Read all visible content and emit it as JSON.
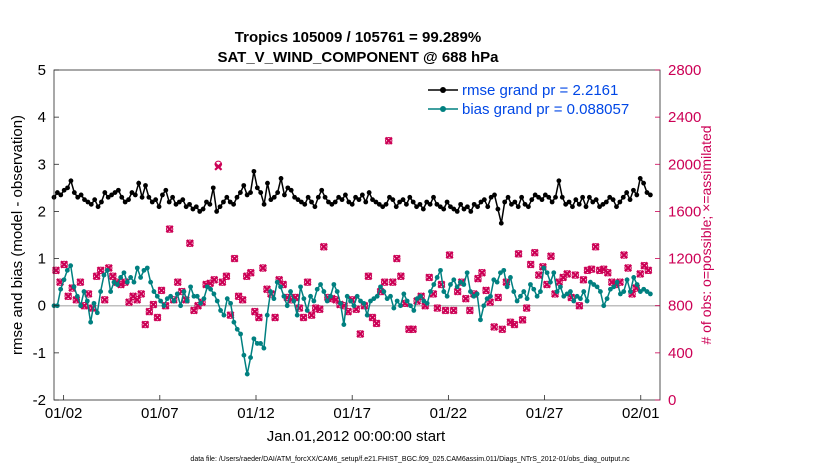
{
  "chart_data": {
    "type": "line",
    "title": "Tropics 105009 / 105761 = 99.289%",
    "subtitle": "SAT_V_WIND_COMPONENT @ 688 hPa",
    "xlabel": "Jan.01,2012 00:00:00 start",
    "ylabel": "rmse and bias (model - observation)",
    "ylabel_right": "# of obs: o=possible; ×=assimilated",
    "footnote": "data file: /Users/raeder/DAI/ATM_forcXX/CAM6_setup/f.e21.FHIST_BGC.f09_025.CAM6assim.011/Diags_NTrS_2012-01/obs_diag_output.nc",
    "xlim": [
      0,
      31.5
    ],
    "ylim": [
      -2,
      5
    ],
    "ylim_right": [
      0,
      2800
    ],
    "x_ticks": [
      0.5,
      5.5,
      10.5,
      15.5,
      20.5,
      25.5,
      30.5
    ],
    "x_tick_labels": [
      "01/02",
      "01/07",
      "01/12",
      "01/17",
      "01/22",
      "01/27",
      "02/01"
    ],
    "y_ticks": [
      -2,
      -1,
      0,
      1,
      2,
      3,
      4,
      5
    ],
    "y_ticks_right": [
      0,
      400,
      800,
      1200,
      1600,
      2000,
      2400,
      2800
    ],
    "legend": [
      {
        "label": "rmse grand pr = 2.2161",
        "color": "#000000"
      },
      {
        "label": "bias grand pr = 0.088057",
        "color": "#008080"
      }
    ],
    "series": [
      {
        "name": "rmse",
        "axis": "left",
        "color": "#000000",
        "marker": "circle",
        "values": [
          2.3,
          2.4,
          2.35,
          2.45,
          2.5,
          2.65,
          2.4,
          2.3,
          2.35,
          2.25,
          2.2,
          2.15,
          2.25,
          2.1,
          2.2,
          2.4,
          2.3,
          2.35,
          2.4,
          2.45,
          2.3,
          2.2,
          2.25,
          2.4,
          2.35,
          2.6,
          2.3,
          2.55,
          2.3,
          2.2,
          2.25,
          2.1,
          2.35,
          2.45,
          2.2,
          2.3,
          2.15,
          2.2,
          2.25,
          2.1,
          2.15,
          2.05,
          2.1,
          2.0,
          2.05,
          2.2,
          2.15,
          2.5,
          2.0,
          2.1,
          2.2,
          2.3,
          2.2,
          2.15,
          2.3,
          2.4,
          2.55,
          2.35,
          2.4,
          2.85,
          2.5,
          2.4,
          2.15,
          2.6,
          2.25,
          2.3,
          2.4,
          2.7,
          2.35,
          2.5,
          2.45,
          2.3,
          2.25,
          2.2,
          2.15,
          2.3,
          2.2,
          2.1,
          2.3,
          2.45,
          2.3,
          2.2,
          2.15,
          2.2,
          2.3,
          2.25,
          2.35,
          2.2,
          2.15,
          2.3,
          2.25,
          2.35,
          2.2,
          2.4,
          2.25,
          2.2,
          2.15,
          2.1,
          2.15,
          2.3,
          2.25,
          2.1,
          2.2,
          2.25,
          2.15,
          2.3,
          2.2,
          2.1,
          2.15,
          2.05,
          2.2,
          2.15,
          2.3,
          2.15,
          2.1,
          2.05,
          2.2,
          2.1,
          2.05,
          2.0,
          2.15,
          2.05,
          2.1,
          2.0,
          2.15,
          2.1,
          2.2,
          2.25,
          2.1,
          2.3,
          2.35,
          2.05,
          1.75,
          2.2,
          2.3,
          2.15,
          2.2,
          2.1,
          2.3,
          2.15,
          2.1,
          2.25,
          2.35,
          2.3,
          2.25,
          2.35,
          2.3,
          2.2,
          2.3,
          2.65,
          2.3,
          2.15,
          2.2,
          2.1,
          2.25,
          2.15,
          2.3,
          2.1,
          2.3,
          2.2,
          2.25,
          2.1,
          2.15,
          2.2,
          2.3,
          2.25,
          2.1,
          2.2,
          2.3,
          2.4,
          2.25,
          2.45,
          2.35,
          2.7,
          2.6,
          2.4,
          2.35
        ]
      },
      {
        "name": "bias",
        "axis": "left",
        "color": "#008080",
        "marker": "circle",
        "values": [
          0.0,
          0.0,
          0.35,
          0.55,
          0.75,
          0.85,
          0.4,
          0.2,
          0.0,
          0.3,
          0.1,
          -0.35,
          0.05,
          -0.15,
          0.3,
          0.65,
          0.75,
          0.3,
          0.5,
          0.45,
          0.6,
          0.7,
          0.5,
          0.6,
          0.5,
          0.8,
          0.6,
          0.75,
          0.8,
          0.5,
          0.3,
          0.2,
          0.1,
          0.0,
          0.15,
          0.2,
          0.1,
          0.25,
          0.0,
          0.3,
          0.1,
          0.4,
          0.2,
          0.2,
          0.05,
          0.15,
          0.4,
          0.35,
          0.25,
          0.1,
          -0.1,
          -0.2,
          0.15,
          0.05,
          -0.35,
          -0.5,
          -0.6,
          -1.05,
          -1.45,
          -1.1,
          -0.7,
          -0.8,
          -0.8,
          -0.9,
          -0.2,
          0.3,
          0.15,
          0.5,
          0.4,
          0.2,
          0.0,
          0.3,
          0.1,
          -0.2,
          0.4,
          0.15,
          -0.1,
          0.2,
          0.1,
          0.35,
          0.45,
          0.3,
          0.1,
          0.2,
          0.45,
          0.3,
          0.05,
          -0.4,
          0.2,
          0.1,
          0.0,
          0.2,
          0.1,
          0.05,
          -0.2,
          0.1,
          0.15,
          0.2,
          0.4,
          0.3,
          0.15,
          0.2,
          -0.05,
          0.1,
          0.0,
          0.25,
          0.1,
          0.0,
          -0.1,
          0.15,
          0.2,
          0.1,
          0.05,
          0.3,
          0.45,
          0.6,
          0.75,
          0.3,
          0.2,
          0.45,
          0.55,
          0.4,
          0.5,
          0.45,
          0.7,
          0.3,
          0.2,
          0.25,
          -0.3,
          0.0,
          0.15,
          0.2,
          0.55,
          0.5,
          0.7,
          0.75,
          0.4,
          0.6,
          0.3,
          0.1,
          0.2,
          0.3,
          0.15,
          0.45,
          0.35,
          0.2,
          0.3,
          0.8,
          0.7,
          0.5,
          0.7,
          0.3,
          0.4,
          0.2,
          0.25,
          0.3,
          0.1,
          0.2,
          0.15,
          0.3,
          0.1,
          0.5,
          0.45,
          0.4,
          0.3,
          0.0,
          0.15,
          0.35,
          0.4,
          0.5,
          0.25,
          0.3,
          0.55,
          0.3,
          0.6,
          0.45,
          0.3,
          0.35,
          0.3,
          0.25
        ]
      },
      {
        "name": "# obs possible",
        "axis": "right",
        "color": "#cc0055",
        "marker": "circle",
        "values": [
          1100,
          1000,
          1150,
          880,
          950,
          850,
          1000,
          800,
          900,
          780,
          1050,
          1100,
          850,
          1120,
          1050,
          1000,
          980,
          1000,
          830,
          880,
          850,
          900,
          640,
          750,
          810,
          700,
          930,
          800,
          1450,
          850,
          1000,
          920,
          850,
          1330,
          760,
          800,
          830,
          980,
          990,
          1020,
          2000,
          1000,
          1050,
          720,
          1200,
          880,
          850,
          1050,
          1080,
          750,
          700,
          1120,
          940,
          900,
          700,
          1020,
          980,
          870,
          850,
          870,
          780,
          700,
          1000,
          720,
          780,
          770,
          1300,
          870,
          860,
          850,
          810,
          800,
          750,
          850,
          770,
          560,
          800,
          1050,
          700,
          650,
          920,
          1000,
          2200,
          1000,
          1200,
          1050,
          820,
          600,
          600,
          840,
          880,
          800,
          1040,
          900,
          780,
          980,
          760,
          1230,
          760,
          920,
          1000,
          860,
          760,
          900,
          1030,
          1080,
          930,
          830,
          620,
          870,
          600,
          1000,
          660,
          640,
          1240,
          680,
          780,
          1150,
          1250,
          1060,
          1130,
          980,
          1220,
          900,
          1000,
          1040,
          1070,
          870,
          1060,
          800,
          1020,
          1100,
          1110,
          1300,
          1100,
          1110,
          1080,
          1000,
          980,
          1000,
          1230,
          1120,
          900,
          950,
          1070,
          1140,
          1100
        ]
      },
      {
        "name": "# obs assimilated",
        "axis": "right",
        "color": "#cc0055",
        "marker": "x",
        "values": [
          1100,
          1000,
          1150,
          880,
          950,
          850,
          1000,
          800,
          900,
          780,
          1050,
          1100,
          850,
          1120,
          1050,
          1000,
          980,
          1000,
          830,
          880,
          850,
          900,
          640,
          750,
          810,
          700,
          930,
          800,
          1450,
          850,
          1000,
          920,
          850,
          1330,
          760,
          800,
          830,
          980,
          990,
          1020,
          1980,
          1000,
          1050,
          720,
          1200,
          880,
          850,
          1050,
          1080,
          750,
          700,
          1120,
          940,
          900,
          700,
          1020,
          980,
          870,
          850,
          870,
          780,
          700,
          1000,
          720,
          780,
          770,
          1300,
          870,
          860,
          850,
          810,
          800,
          750,
          850,
          770,
          560,
          800,
          1050,
          700,
          650,
          920,
          1000,
          2200,
          1000,
          1200,
          1050,
          820,
          600,
          600,
          840,
          880,
          800,
          1040,
          900,
          780,
          980,
          760,
          1230,
          760,
          920,
          1000,
          860,
          760,
          900,
          1030,
          1080,
          930,
          830,
          620,
          870,
          600,
          1000,
          660,
          640,
          1240,
          680,
          780,
          1150,
          1250,
          1060,
          1130,
          980,
          1220,
          900,
          1000,
          1040,
          1070,
          870,
          1060,
          800,
          1020,
          1100,
          1110,
          1300,
          1100,
          1110,
          1080,
          1000,
          980,
          1000,
          1230,
          1120,
          900,
          950,
          1070,
          1140,
          1100
        ]
      }
    ]
  }
}
